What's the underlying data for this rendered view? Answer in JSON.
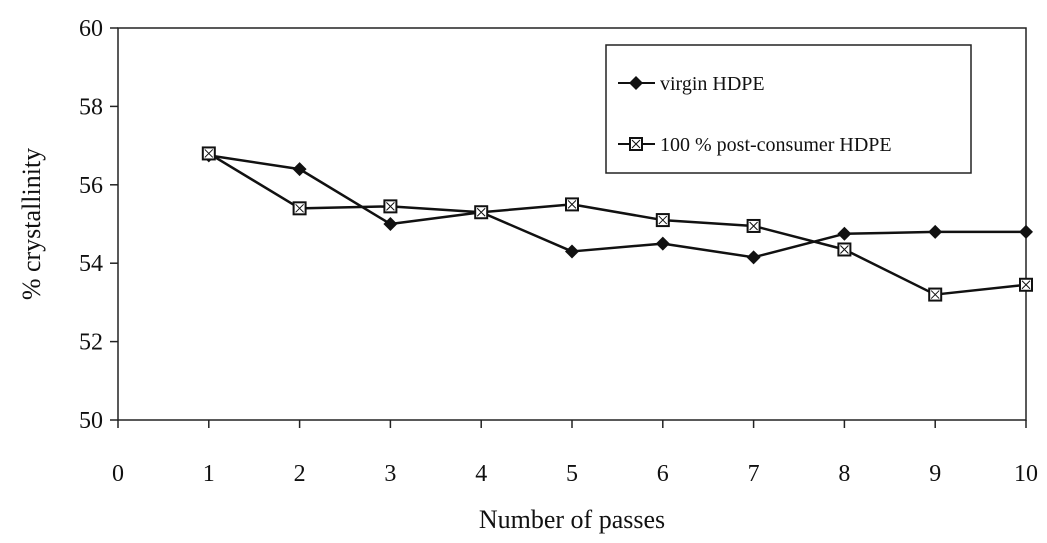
{
  "chart_data": {
    "type": "line",
    "xlabel": "Number of passes",
    "ylabel": "% crystallinity",
    "xlim": [
      0,
      10
    ],
    "ylim": [
      50,
      60
    ],
    "x_ticks": [
      "0",
      "1",
      "2",
      "3",
      "4",
      "5",
      "6",
      "7",
      "8",
      "9",
      "10"
    ],
    "y_ticks": [
      "50",
      "52",
      "54",
      "56",
      "58",
      "60"
    ],
    "grid": false,
    "legend_position": "top-right",
    "x": [
      1,
      2,
      3,
      4,
      5,
      6,
      7,
      8,
      9,
      10
    ],
    "series": [
      {
        "name": "virgin HDPE",
        "marker": "diamond",
        "color": "#111111",
        "values": [
          56.75,
          56.4,
          55.0,
          55.3,
          54.3,
          54.5,
          54.15,
          54.75,
          54.8,
          54.8
        ]
      },
      {
        "name": "100 % post-consumer HDPE",
        "marker": "square",
        "color": "#111111",
        "values": [
          56.8,
          55.4,
          55.45,
          55.3,
          55.5,
          55.1,
          54.95,
          54.35,
          53.2,
          53.45
        ]
      }
    ]
  }
}
